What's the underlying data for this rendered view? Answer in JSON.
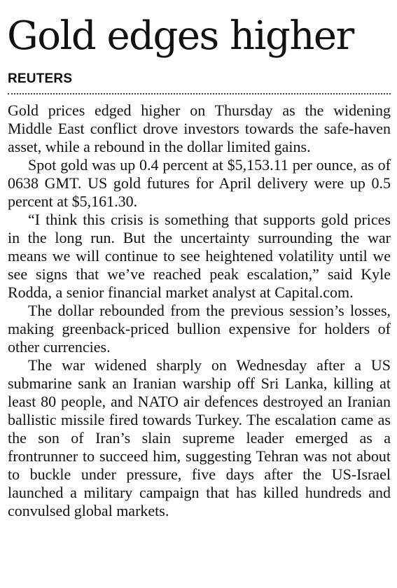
{
  "article": {
    "headline": "Gold edges higher",
    "byline": "REUTERS",
    "paragraphs": [
      "Gold prices edged higher on Thursday as the widening Middle East conflict drove investors towards the safe-haven asset, while a rebound in the dollar limited gains.",
      "Spot gold was up 0.4 percent at $5,153.11 per ounce, as of 0638 GMT. US gold futures for April delivery were up 0.5 percent at $5,161.30.",
      "“I think this crisis is something that supports gold prices in the long run. But the uncertainty surrounding the war means we will continue to see heightened volatility until we see signs that we’ve reached peak escalation,” said Kyle Rodda, a senior financial market analyst at Capital.com.",
      "The dollar rebounded from the previous session’s losses, making greenback-priced bullion expensive for holders of other currencies.",
      "The war widened sharply on Wednesday after a US submarine sank an Iranian warship off Sri Lanka, killing at least 80 people, and NATO air defences destroyed an Iranian ballistic missile fired towards Turkey. The escalation came as the son of Iran’s slain supreme leader emerged as a frontrunner to succeed him, suggesting Tehran was not about to buckle under pressure, five days after the US-Israel launched a military campaign that has killed hundreds and convulsed global markets."
    ]
  }
}
